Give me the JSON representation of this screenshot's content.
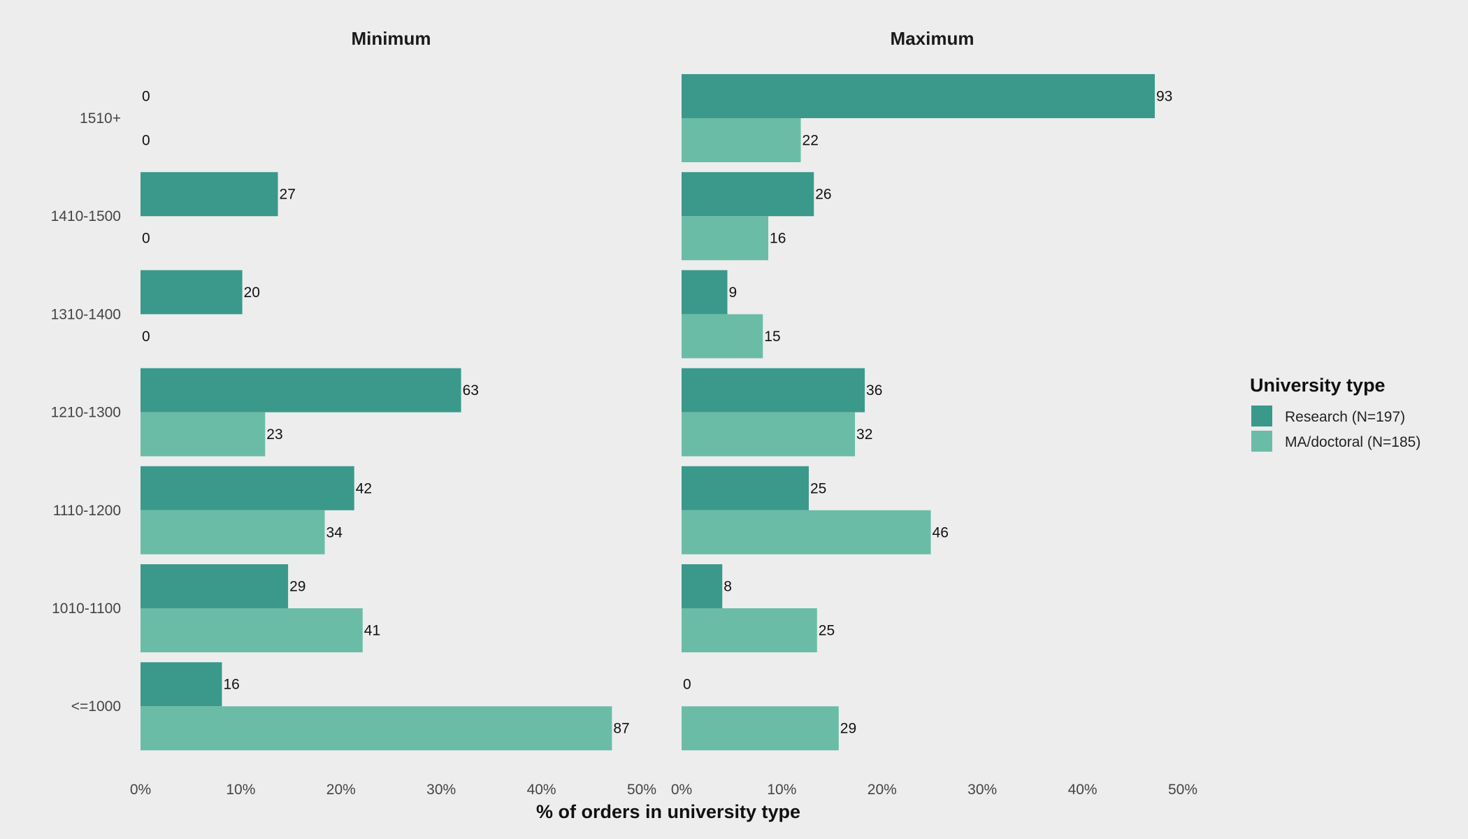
{
  "chart_data": {
    "type": "bar",
    "orientation": "horizontal",
    "categories": [
      "1510+",
      "1410-1500",
      "1310-1400",
      "1210-1300",
      "1110-1200",
      "1010-1100",
      "<=1000"
    ],
    "legend": {
      "title": "University type",
      "position": "right"
    },
    "series": [
      {
        "name": "Research (N=197)",
        "color": "#3a998b"
      },
      {
        "name": "MA/doctoral (N=185)",
        "color": "#6bbca6"
      }
    ],
    "panels": [
      {
        "title": "Minimum",
        "counts": [
          [
            0,
            27,
            20,
            63,
            42,
            29,
            16
          ],
          [
            0,
            0,
            0,
            23,
            34,
            41,
            87
          ]
        ]
      },
      {
        "title": "Maximum",
        "counts": [
          [
            93,
            26,
            9,
            36,
            25,
            8,
            0
          ],
          [
            22,
            16,
            15,
            32,
            46,
            25,
            29
          ]
        ]
      }
    ],
    "value_note": "bar length = count / N (percent of orders in university type); labels show counts",
    "xlabel": "% of orders in university type",
    "xlim": [
      0,
      0.5
    ],
    "xticks": [
      "0%",
      "10%",
      "20%",
      "30%",
      "40%",
      "50%"
    ],
    "grid": false
  }
}
